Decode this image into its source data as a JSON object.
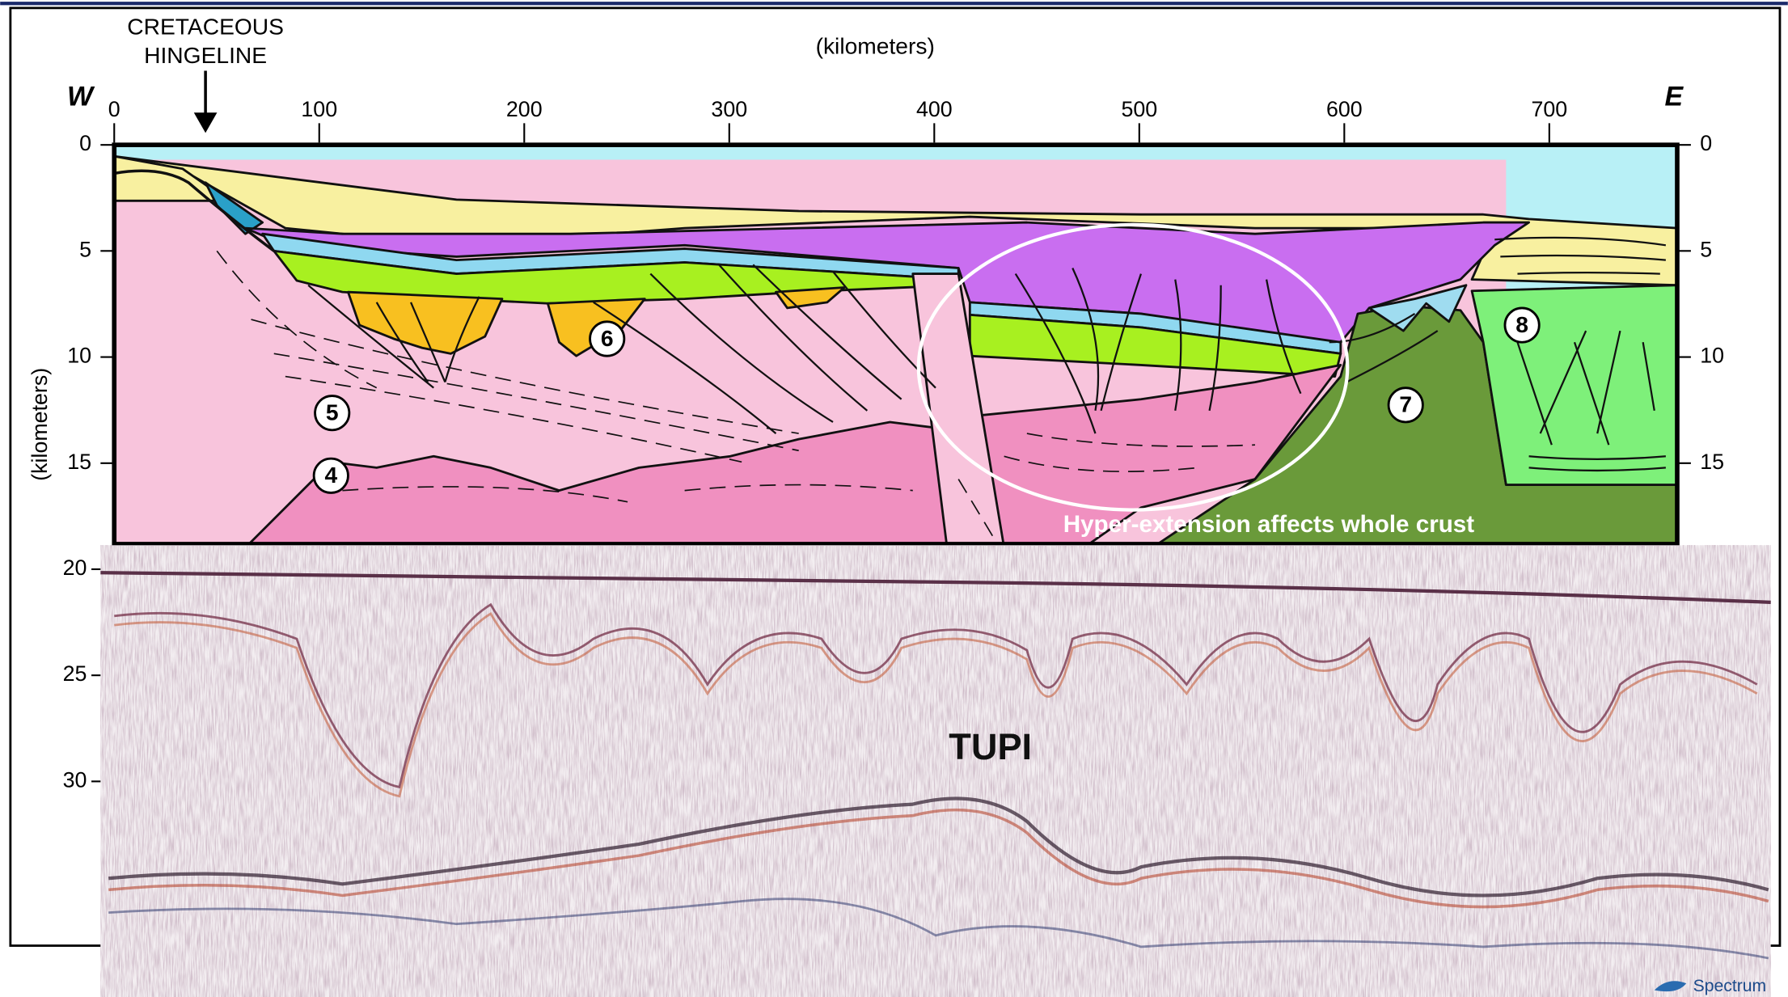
{
  "header": {
    "hingeline": [
      "CRETACEOUS",
      "HINGELINE"
    ],
    "west": "W",
    "east": "E"
  },
  "distance_axis": {
    "label": "(kilometers)",
    "ticks": [
      0,
      100,
      200,
      300,
      400,
      500,
      600,
      700
    ]
  },
  "depth_axis": {
    "label": "(kilometers)",
    "ticks": [
      0,
      5,
      10,
      15
    ],
    "seismic_ticks": [
      20,
      25,
      30
    ]
  },
  "units": {
    "labels": [
      "4",
      "5",
      "6",
      "7",
      "8"
    ]
  },
  "annotation": "Hyper-extension affects whole crust",
  "seismic": {
    "label": "TUPI",
    "credit": "Spectrum"
  }
}
